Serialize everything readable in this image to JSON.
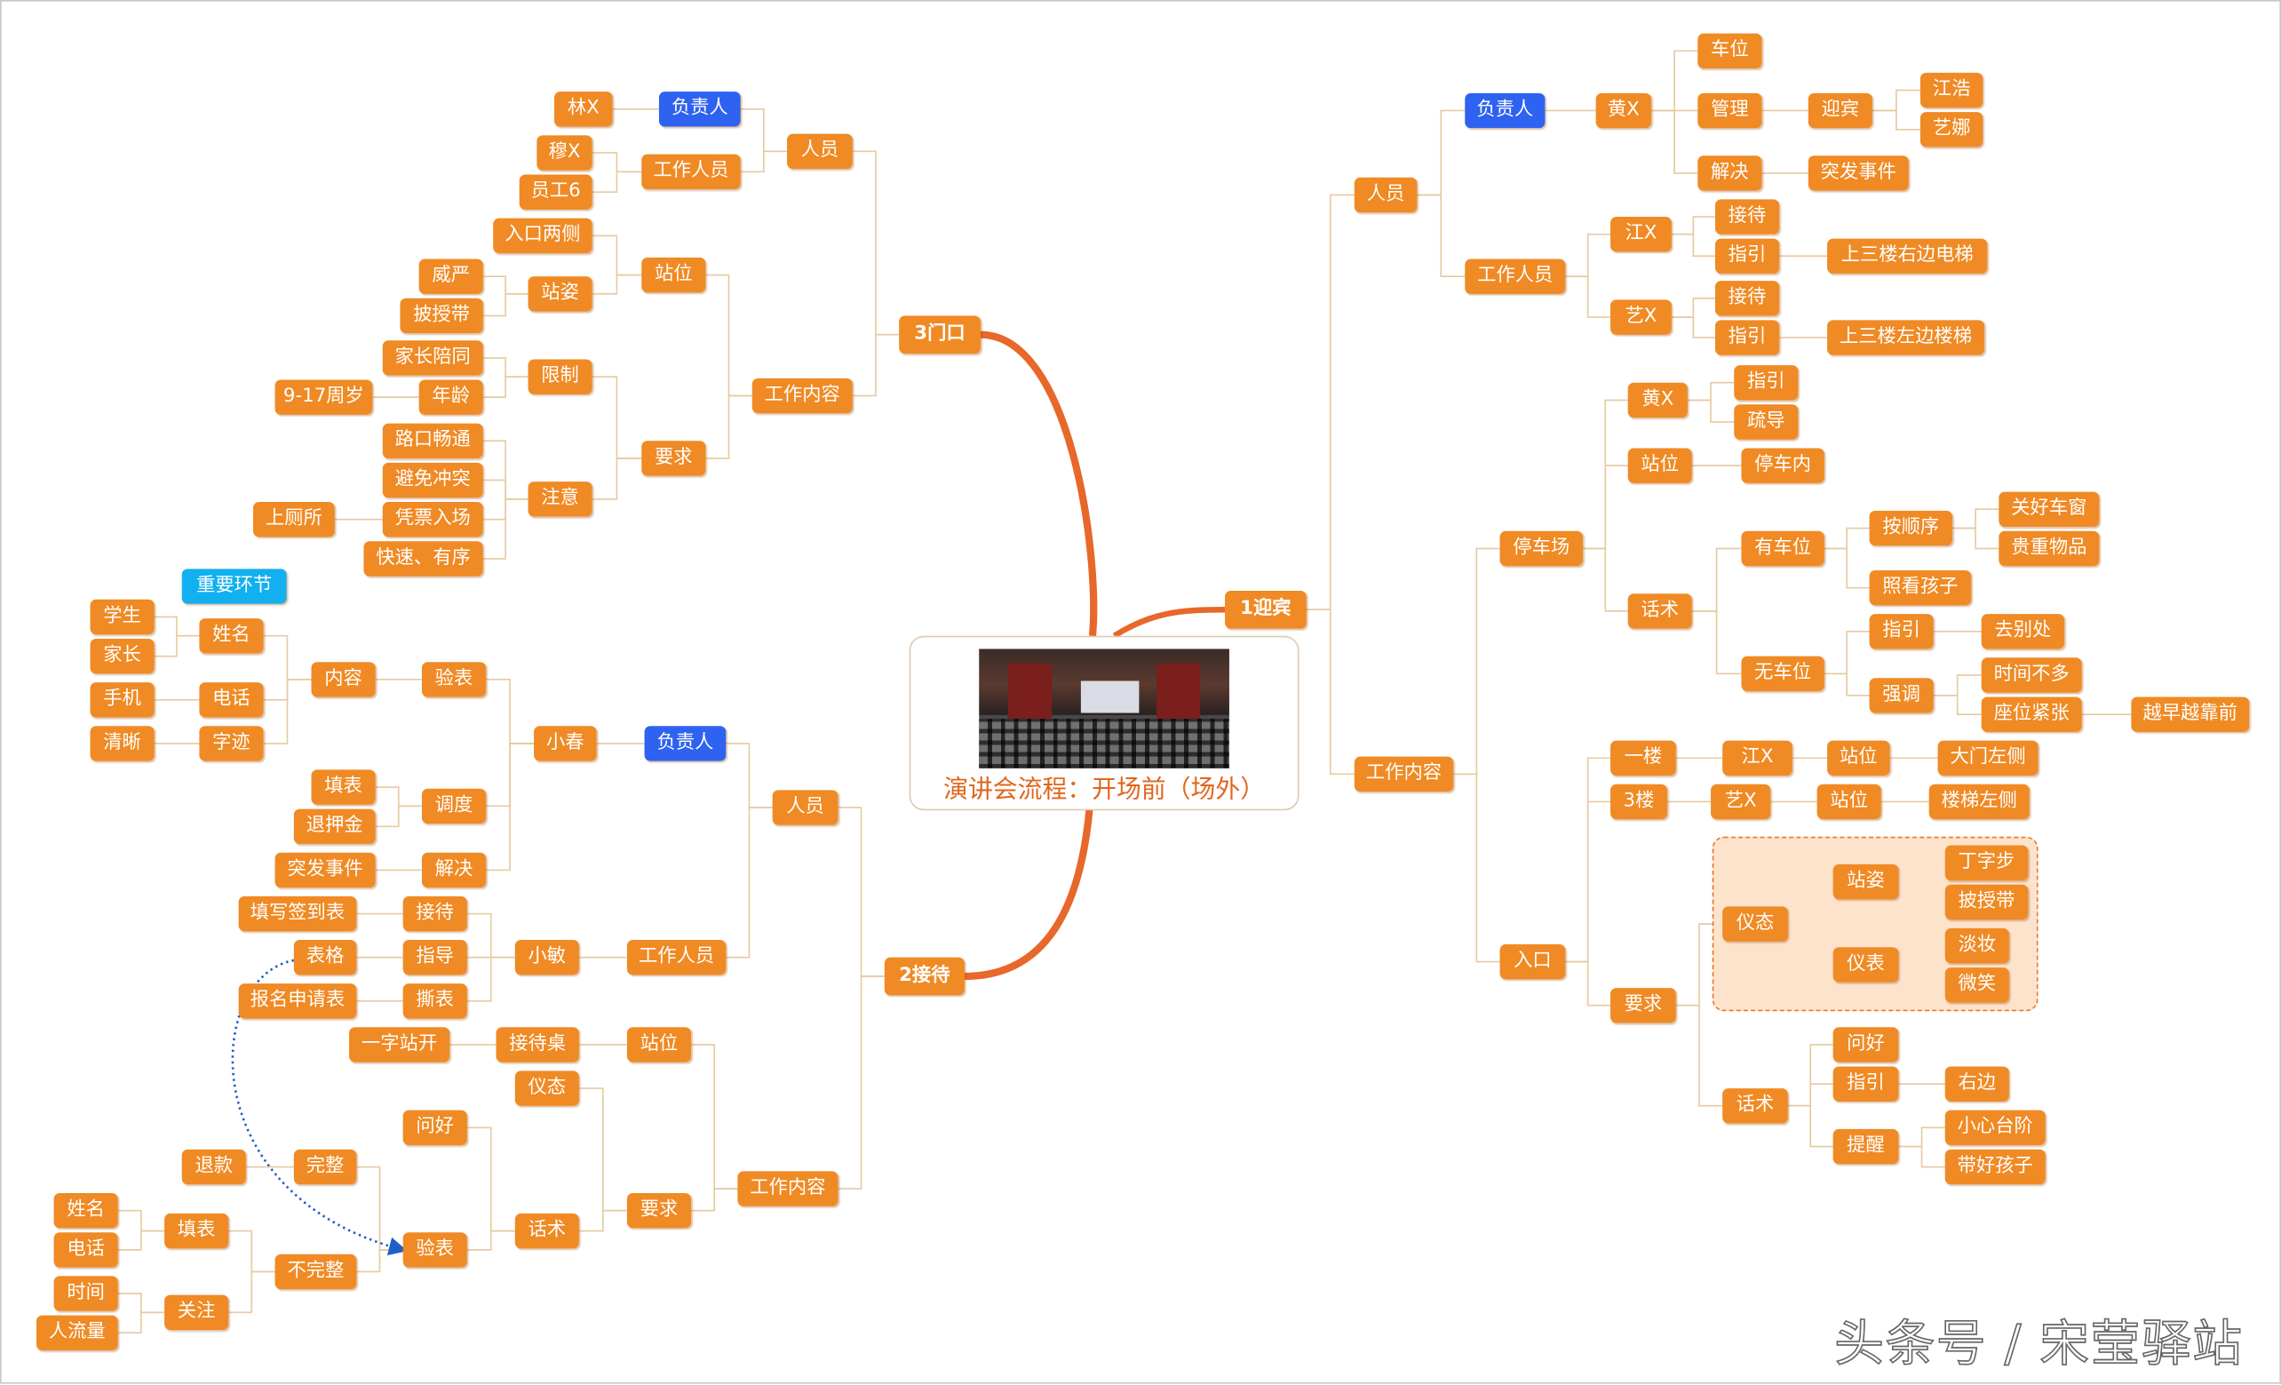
{
  "center": {
    "title": "演讲会流程：开场前（场外）",
    "image": "auditorium-photo"
  },
  "callout": "重要环节",
  "watermark": "头条号 / 宋莹驿站",
  "colors": {
    "topic": "#f08a24",
    "owner": "#2e62f0",
    "callout": "#12b0ef",
    "branch_line": "#e8672a",
    "link": "#e8c9a0",
    "relation": "#1f5fc8"
  },
  "nodes": {
    "r": "1迎宾",
    "r1": "人员",
    "r1a": "负责人",
    "r1a1": "黄X",
    "r1a1a": "车位",
    "r1a1b": "管理",
    "r1a1b1": "迎宾",
    "r1a1b1a": "江浩",
    "r1a1b1b": "艺娜",
    "r1a1c": "解决",
    "r1a1c1": "突发事件",
    "r1b": "工作人员",
    "r1b1": "江X",
    "r1b1a": "接待",
    "r1b1b": "指引",
    "r1b1b1": "上三楼右边电梯",
    "r1b2": "艺X",
    "r1b2a": "接待",
    "r1b2b": "指引",
    "r1b2b1": "上三楼左边楼梯",
    "r2": "工作内容",
    "r2a": "停车场",
    "r2a1": "黄X",
    "r2a1a": "指引",
    "r2a1b": "疏导",
    "r2a2": "站位",
    "r2a2a": "停车内",
    "r2a3": "话术",
    "r2a3a": "有车位",
    "r2a3a1": "按顺序",
    "r2a3a1a": "关好车窗",
    "r2a3a1b": "贵重物品",
    "r2a3a2": "照看孩子",
    "r2a3b": "无车位",
    "r2a3b1": "指引",
    "r2a3b1a": "去别处",
    "r2a3b2": "强调",
    "r2a3b2a": "时间不多",
    "r2a3b2b": "座位紧张",
    "r2a3b2b1": "越早越靠前",
    "r2b": "入口",
    "r2b1": "一楼",
    "r2b1a": "江X",
    "r2b1a1": "站位",
    "r2b1a1a": "大门左侧",
    "r2b2": "3楼",
    "r2b2a": "艺X",
    "r2b2a1": "站位",
    "r2b2a1a": "楼梯左侧",
    "r2b3": "要求",
    "r2b3a": "仪态",
    "r2b3a1": "站姿",
    "r2b3a1a": "丁字步",
    "r2b3a1b": "披授带",
    "r2b3a2": "仪表",
    "r2b3a2a": "淡妆",
    "r2b3a2b": "微笑",
    "r2b3b": "话术",
    "r2b3b1": "问好",
    "r2b3b2": "指引",
    "r2b3b2a": "右边",
    "r2b3b3": "提醒",
    "r2b3b3a": "小心台阶",
    "r2b3b3b": "带好孩子",
    "g": "3门口",
    "g1": "人员",
    "g1a": "负责人",
    "g1a1": "林X",
    "g1b": "工作人员",
    "g1b1": "穆X",
    "g1b2": "员工6",
    "g2": "工作内容",
    "g2a": "站位",
    "g2a1": "入口两侧",
    "g2a2": "站姿",
    "g2a2a": "威严",
    "g2a2b": "披授带",
    "g2b": "要求",
    "g2b1": "限制",
    "g2b1a": "家长陪同",
    "g2b1b": "年龄",
    "g2b1b1": "9-17周岁",
    "g2b2": "注意",
    "g2b2a": "路口畅通",
    "g2b2b": "避免冲突",
    "g2b2c": "凭票入场",
    "g2b2c1": "上厕所",
    "g2b2d": "快速、有序",
    "j": "2接待",
    "j1": "人员",
    "j1a": "负责人",
    "j1a1": "小春",
    "j1a1a": "验表",
    "j1a1a1": "内容",
    "j1a1a1a": "姓名",
    "j1a1a1a1": "学生",
    "j1a1a1a2": "家长",
    "j1a1a1b": "电话",
    "j1a1a1b1": "手机",
    "j1a1a1c": "字迹",
    "j1a1a1c1": "清晰",
    "j1a1b": "调度",
    "j1a1b1": "填表",
    "j1a1b2": "退押金",
    "j1a1c": "解决",
    "j1a1c1": "突发事件",
    "j1b": "工作人员",
    "j1b1": "小敏",
    "j1b1a": "接待",
    "j1b1a1": "填写签到表",
    "j1b1b": "指导",
    "j1b1b1": "表格",
    "j1b1c": "撕表",
    "j1b1c1": "报名申请表",
    "j2": "工作内容",
    "j2a": "站位",
    "j2a1": "接待桌",
    "j2a1a": "一字站开",
    "j2b": "要求",
    "j2b1": "仪态",
    "j2b2": "话术",
    "j2b2a": "问好",
    "j2b2b": "验表",
    "j2b2b1": "完整",
    "j2b2b1a": "退款",
    "j2b2b2": "不完整",
    "j2b2b2a": "填表",
    "j2b2b2a1": "姓名",
    "j2b2b2a2": "电话",
    "j2b2b2b": "关注",
    "j2b2b2b1": "时间",
    "j2b2b2b2": "人流量"
  },
  "relationship": {
    "from": "j1b1b1",
    "to": "j2b2b"
  }
}
